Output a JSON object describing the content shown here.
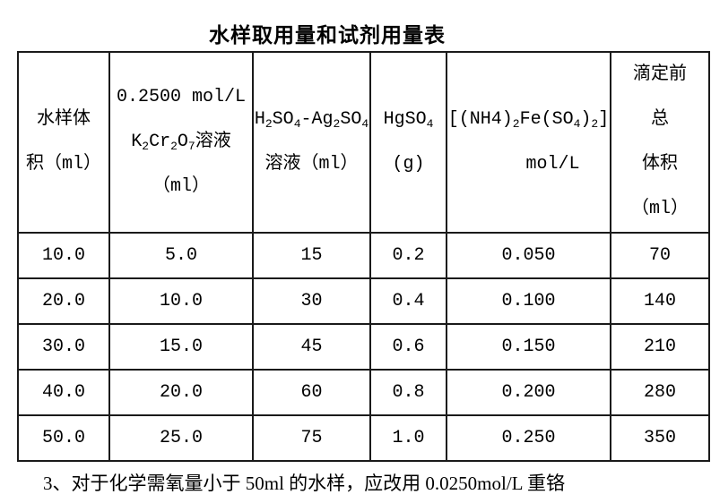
{
  "title": "水样取用量和试剂用量表",
  "colors": {
    "background": "#ffffff",
    "text": "#000000",
    "table_border": "#1a1a1a"
  },
  "table": {
    "headers": [
      {
        "lines": [
          "水样体",
          "积（ml）"
        ]
      },
      {
        "lines": [
          "0.2500 mol/L",
          "K~2~Cr~2~O~7~溶液",
          "（ml）"
        ]
      },
      {
        "lines": [
          "H~2~SO~4~-Ag~2~SO~4~",
          "溶液（ml）"
        ]
      },
      {
        "lines": [
          "HgSO~4~",
          "(g)"
        ]
      },
      {
        "lines": [
          "[(NH4)~2~Fe(SO~4~)~2~]",
          "mol/L"
        ]
      },
      {
        "lines": [
          "滴定前",
          "总",
          "体积",
          "（ml）"
        ]
      }
    ],
    "rows": [
      [
        "10.0",
        "5.0",
        "15",
        "0.2",
        "0.050",
        "70"
      ],
      [
        "20.0",
        "10.0",
        "30",
        "0.4",
        "0.100",
        "140"
      ],
      [
        "30.0",
        "15.0",
        "45",
        "0.6",
        "0.150",
        "210"
      ],
      [
        "40.0",
        "20.0",
        "60",
        "0.8",
        "0.200",
        "280"
      ],
      [
        "50.0",
        "25.0",
        "75",
        "1.0",
        "0.250",
        "350"
      ]
    ]
  },
  "footnote": "3、对于化学需氧量小于 50ml 的水样，应改用 0.0250mol/L 重铬"
}
